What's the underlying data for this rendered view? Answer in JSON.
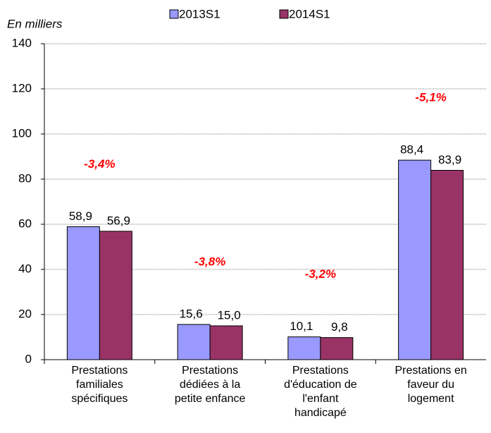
{
  "chart_data": {
    "type": "bar",
    "y_label": "En milliers",
    "categories": [
      "Prestations\nfamiliales\nspécifiques",
      "Prestations\ndédiées à la\npetite enfance",
      "Prestations\nd'éducation de\nl'enfant\nhandicapé",
      "Prestations en\nfaveur du\nlogement"
    ],
    "series": [
      {
        "name": "2013S1",
        "color": "#9999ff",
        "values": [
          58.9,
          15.6,
          10.1,
          88.4
        ],
        "value_labels": [
          "58,9",
          "15,6",
          "10,1",
          "88,4"
        ]
      },
      {
        "name": "2014S1",
        "color": "#993366",
        "values": [
          56.9,
          15.0,
          9.8,
          83.9
        ],
        "value_labels": [
          "56,9",
          "15,0",
          "9,8",
          "83,9"
        ]
      }
    ],
    "annotations": [
      "-3,4%",
      "-3,8%",
      "-3,2%",
      "-5,1%"
    ],
    "annotation_color": "#ff0000",
    "ylim": [
      0,
      140
    ],
    "yticks": [
      0,
      20,
      40,
      60,
      80,
      100,
      120,
      140
    ],
    "grid": true
  }
}
